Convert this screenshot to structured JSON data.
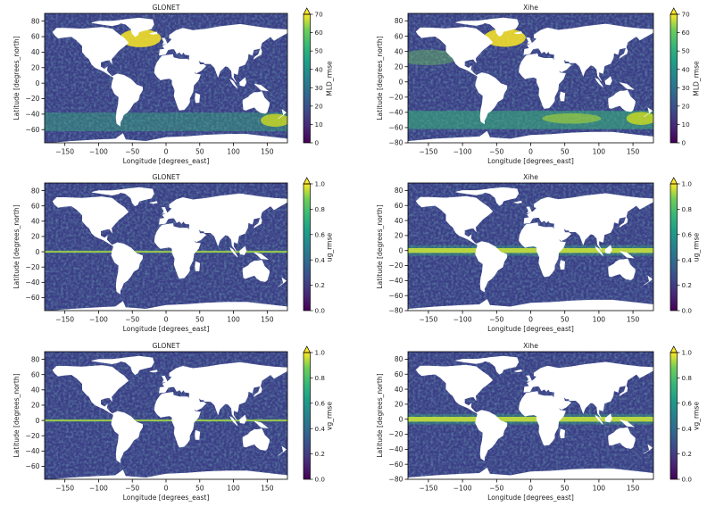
{
  "chart_data": [
    {
      "type": "heatmap",
      "title": "GLONET",
      "xlabel": "Longitude [degrees_east]",
      "ylabel": "Latitude [degrees_north]",
      "colorbar_label": "MLD_rmse",
      "xlim": [
        -180,
        180
      ],
      "ylim": [
        -77,
        90
      ],
      "xticks": [
        -150,
        -100,
        -50,
        0,
        50,
        100,
        150
      ],
      "yticks": [
        -60,
        -40,
        -20,
        0,
        20,
        40,
        60,
        80
      ],
      "colorbar_range": [
        0,
        70
      ],
      "colorbar_ticks": [
        0,
        10,
        20,
        30,
        40,
        50,
        60,
        70
      ],
      "colormap": "viridis",
      "colorbar_extend": "max"
    },
    {
      "type": "heatmap",
      "title": "Xihe",
      "xlabel": "Longitude [degrees_east]",
      "ylabel": "Latitude [degrees_north]",
      "colorbar_label": "MLD_rmse",
      "xlim": [
        -180,
        180
      ],
      "ylim": [
        -80,
        90
      ],
      "xticks": [
        -150,
        -100,
        -50,
        0,
        50,
        100,
        150
      ],
      "yticks": [
        -80,
        -60,
        -40,
        -20,
        0,
        20,
        40,
        60,
        80
      ],
      "colorbar_range": [
        0,
        70
      ],
      "colorbar_ticks": [
        0,
        10,
        20,
        30,
        40,
        50,
        60,
        70
      ],
      "colormap": "viridis",
      "colorbar_extend": "max"
    },
    {
      "type": "heatmap",
      "title": "GLONET",
      "xlabel": "Longitude [degrees_east]",
      "ylabel": "Latitude [degrees_north]",
      "colorbar_label": "ug_rmse",
      "xlim": [
        -180,
        180
      ],
      "ylim": [
        -77,
        90
      ],
      "xticks": [
        -150,
        -100,
        -50,
        0,
        50,
        100,
        150
      ],
      "yticks": [
        -60,
        -40,
        -20,
        0,
        20,
        40,
        60,
        80
      ],
      "colorbar_range": [
        0,
        1
      ],
      "colorbar_ticks": [
        "0.0",
        "0.2",
        "0.4",
        "0.6",
        "0.8",
        "1.0"
      ],
      "colormap": "viridis",
      "colorbar_extend": "max"
    },
    {
      "type": "heatmap",
      "title": "Xihe",
      "xlabel": "Longitude [degrees_east]",
      "ylabel": "Latitude [degrees_north]",
      "colorbar_label": "ug_rmse",
      "xlim": [
        -180,
        180
      ],
      "ylim": [
        -80,
        90
      ],
      "xticks": [
        -150,
        -100,
        -50,
        0,
        50,
        100,
        150
      ],
      "yticks": [
        -80,
        -60,
        -40,
        -20,
        0,
        20,
        40,
        60,
        80
      ],
      "colorbar_range": [
        0,
        1
      ],
      "colorbar_ticks": [
        "0.0",
        "0.2",
        "0.4",
        "0.6",
        "0.8",
        "1.0"
      ],
      "colormap": "viridis",
      "colorbar_extend": "max"
    },
    {
      "type": "heatmap",
      "title": "GLONET",
      "xlabel": "Longitude [degrees_east]",
      "ylabel": "Latitude [degrees_north]",
      "colorbar_label": "vg_rmse",
      "xlim": [
        -180,
        180
      ],
      "ylim": [
        -77,
        90
      ],
      "xticks": [
        -150,
        -100,
        -50,
        0,
        50,
        100,
        150
      ],
      "yticks": [
        -60,
        -40,
        -20,
        0,
        20,
        40,
        60,
        80
      ],
      "colorbar_range": [
        0,
        1
      ],
      "colorbar_ticks": [
        "0.0",
        "0.2",
        "0.4",
        "0.6",
        "0.8",
        "1.0"
      ],
      "colormap": "viridis",
      "colorbar_extend": "max"
    },
    {
      "type": "heatmap",
      "title": "Xihe",
      "xlabel": "Longitude [degrees_east]",
      "ylabel": "Latitude [degrees_north]",
      "colorbar_label": "vg_rmse",
      "xlim": [
        -180,
        180
      ],
      "ylim": [
        -80,
        90
      ],
      "xticks": [
        -150,
        -100,
        -50,
        0,
        50,
        100,
        150
      ],
      "yticks": [
        -80,
        -60,
        -40,
        -20,
        0,
        20,
        40,
        60,
        80
      ],
      "colorbar_range": [
        0,
        1
      ],
      "colorbar_ticks": [
        "0.0",
        "0.2",
        "0.4",
        "0.6",
        "0.8",
        "1.0"
      ],
      "colormap": "viridis",
      "colorbar_extend": "max"
    }
  ]
}
